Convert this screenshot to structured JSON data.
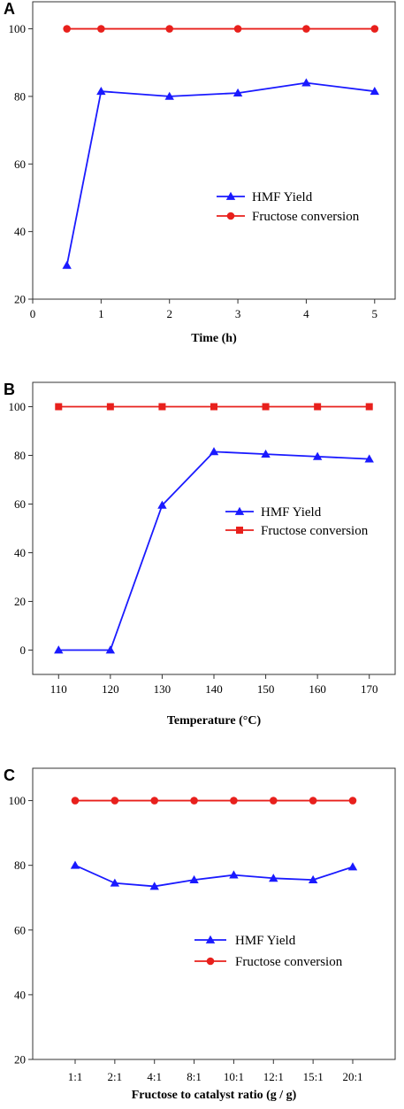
{
  "chart_data": [
    {
      "panel": "A",
      "type": "line",
      "x": [
        0.5,
        1,
        2,
        3,
        4,
        5
      ],
      "xlabel": "Time (h)",
      "ylabel": "",
      "xlim": [
        0,
        5.3
      ],
      "ylim": [
        20,
        108
      ],
      "xticks": [
        0,
        1,
        2,
        3,
        4,
        5
      ],
      "yticks": [
        20,
        40,
        60,
        80,
        100
      ],
      "xtick_labels": [
        "0",
        "1",
        "2",
        "3",
        "4",
        "5"
      ],
      "ytick_labels": [
        "20",
        "40",
        "60",
        "80",
        "100"
      ],
      "legend_position": "center-right",
      "series": [
        {
          "name": "HMF Yield",
          "color": "#1a1aff",
          "marker": "triangle",
          "values": [
            30,
            81.5,
            80,
            81,
            84,
            81.5
          ]
        },
        {
          "name": "Fructose conversion",
          "color": "#e8201c",
          "marker": "circle",
          "values": [
            100,
            100,
            100,
            100,
            100,
            100
          ]
        }
      ]
    },
    {
      "panel": "B",
      "type": "line",
      "x": [
        110,
        120,
        130,
        140,
        150,
        160,
        170
      ],
      "xlabel": "Temperature (°C)",
      "ylabel": "",
      "xlim": [
        105,
        175
      ],
      "ylim": [
        -10,
        110
      ],
      "xticks": [
        110,
        120,
        130,
        140,
        150,
        160,
        170
      ],
      "yticks": [
        0,
        20,
        40,
        60,
        80,
        100
      ],
      "xtick_labels": [
        "110",
        "120",
        "130",
        "140",
        "150",
        "160",
        "170"
      ],
      "ytick_labels": [
        "0",
        "20",
        "40",
        "60",
        "80",
        "100"
      ],
      "legend_position": "center-right",
      "series": [
        {
          "name": "HMF Yield",
          "color": "#1a1aff",
          "marker": "triangle",
          "values": [
            0,
            0,
            59.5,
            81.5,
            80.5,
            79.5,
            78.5
          ]
        },
        {
          "name": "Fructose conversion",
          "color": "#e8201c",
          "marker": "square",
          "values": [
            100,
            100,
            100,
            100,
            100,
            100,
            100
          ]
        }
      ]
    },
    {
      "panel": "C",
      "type": "line",
      "categories": [
        "1:1",
        "2:1",
        "4:1",
        "8:1",
        "10:1",
        "12:1",
        "15:1",
        "20:1"
      ],
      "xlabel": "Fructose to catalyst ratio (g / g)",
      "ylabel": "",
      "ylim": [
        20,
        110
      ],
      "yticks": [
        20,
        40,
        60,
        80,
        100
      ],
      "ytick_labels": [
        "20",
        "40",
        "60",
        "80",
        "100"
      ],
      "legend_position": "center-right",
      "series": [
        {
          "name": "HMF Yield",
          "color": "#1a1aff",
          "marker": "triangle",
          "values": [
            80,
            74.5,
            73.5,
            75.5,
            77,
            76,
            75.5,
            79.5
          ]
        },
        {
          "name": "Fructose conversion",
          "color": "#e8201c",
          "marker": "circle",
          "values": [
            100,
            100,
            100,
            100,
            100,
            100,
            100,
            100
          ]
        }
      ]
    }
  ]
}
